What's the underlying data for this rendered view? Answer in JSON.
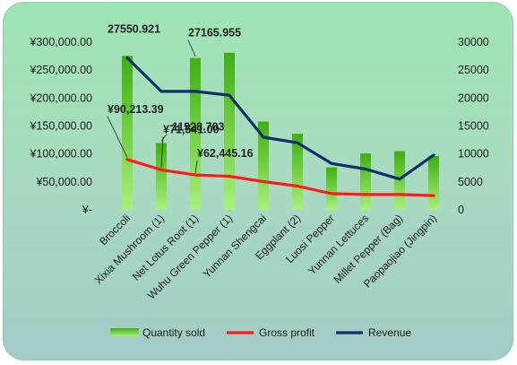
{
  "chart_data": {
    "type": "bar",
    "categories": [
      "Broccoli",
      "Xixia Mushroom (1)",
      "Net Lotus Root (1)",
      "Wuhu Green Pepper (1)",
      "Yunnan Shengcai",
      "Eggplant (2)",
      "Luosi Pepper",
      "Yunnan Lettuces",
      "Millet Pepper (Bag)",
      "Paopaojiao (Jingpin)"
    ],
    "series": [
      {
        "name": "Quantity sold",
        "type": "bar",
        "axis": "right",
        "color": "#5cc41a",
        "values": [
          27550.921,
          11928.703,
          27165.955,
          28100,
          15800,
          13600,
          7600,
          10100,
          10500,
          9600
        ]
      },
      {
        "name": "Gross profit",
        "type": "line",
        "axis": "left",
        "color": "#ff1a1a",
        "values": [
          90213.39,
          71541.0,
          62445.16,
          60000,
          50500,
          42500,
          29000,
          27500,
          27500,
          25500
        ]
      },
      {
        "name": "Revenue",
        "type": "line",
        "axis": "right",
        "color": "#0f2f6b",
        "values": [
          27200,
          21200,
          21200,
          20500,
          13000,
          12000,
          8300,
          7300,
          5500,
          9800
        ]
      }
    ],
    "left_axis": {
      "min": 0,
      "max": 300000,
      "step": 50000,
      "tick_labels": [
        "¥-",
        "¥50,000.00",
        "¥100,000.00",
        "¥150,000.00",
        "¥200,000.00",
        "¥250,000.00",
        "¥300,000.00"
      ]
    },
    "right_axis": {
      "min": 0,
      "max": 30000,
      "step": 5000,
      "tick_labels": [
        "0",
        "5000",
        "10000",
        "15000",
        "20000",
        "25000",
        "30000"
      ]
    },
    "annotations": [
      {
        "series": "Quantity sold",
        "index": 0,
        "text": "27550.921"
      },
      {
        "series": "Quantity sold",
        "index": 1,
        "text": "11928.703"
      },
      {
        "series": "Quantity sold",
        "index": 2,
        "text": "27165.955"
      },
      {
        "series": "Gross profit",
        "index": 0,
        "text": "¥90,213.39"
      },
      {
        "series": "Gross profit",
        "index": 1,
        "text": "¥71,541.00"
      },
      {
        "series": "Gross profit",
        "index": 2,
        "text": "¥62,445.16"
      }
    ],
    "grid": false,
    "legend_position": "bottom"
  }
}
